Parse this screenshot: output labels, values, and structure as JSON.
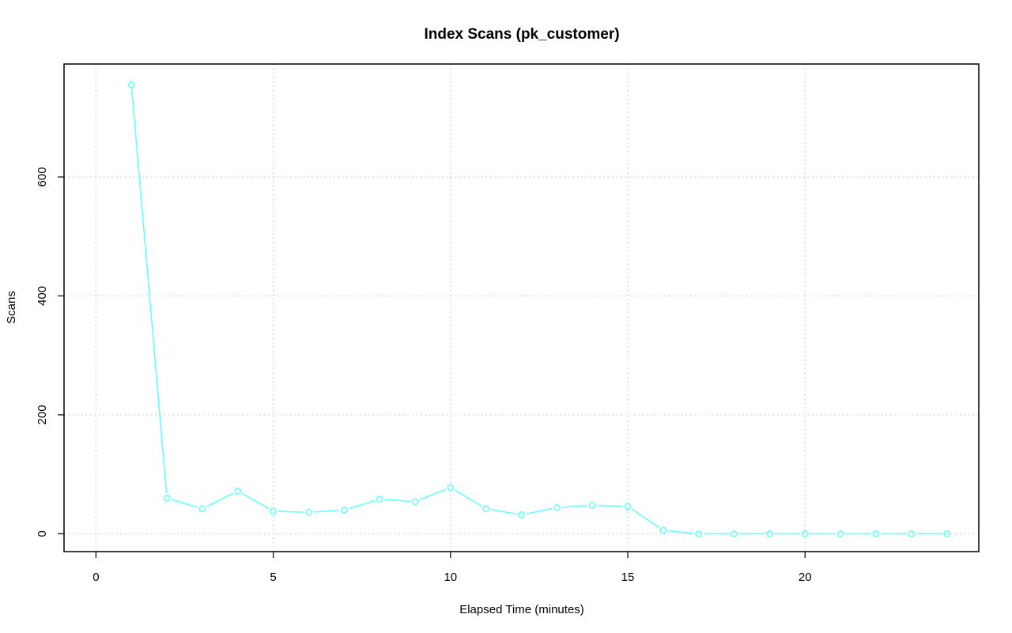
{
  "chart_data": {
    "type": "line",
    "title": "Index Scans (pk_customer)",
    "xlabel": "Elapsed Time (minutes)",
    "ylabel": "Scans",
    "xlim": [
      -0.9,
      24.9
    ],
    "ylim": [
      -30,
      790
    ],
    "xticks": [
      0,
      5,
      10,
      15,
      20
    ],
    "yticks": [
      0,
      200,
      400,
      600
    ],
    "grid": true,
    "legend": "none",
    "series": [
      {
        "color": "#66ffff",
        "marker": "open-circle",
        "x": [
          1,
          2,
          3,
          4,
          5,
          6,
          7,
          8,
          9,
          10,
          11,
          12,
          13,
          14,
          15,
          16,
          17,
          18,
          19,
          20,
          21,
          22,
          23,
          24
        ],
        "y": [
          755,
          60,
          42,
          72,
          38,
          36,
          40,
          58,
          54,
          78,
          42,
          32,
          44,
          48,
          46,
          6,
          0,
          0,
          0,
          0,
          0,
          0,
          0,
          0
        ]
      }
    ]
  }
}
